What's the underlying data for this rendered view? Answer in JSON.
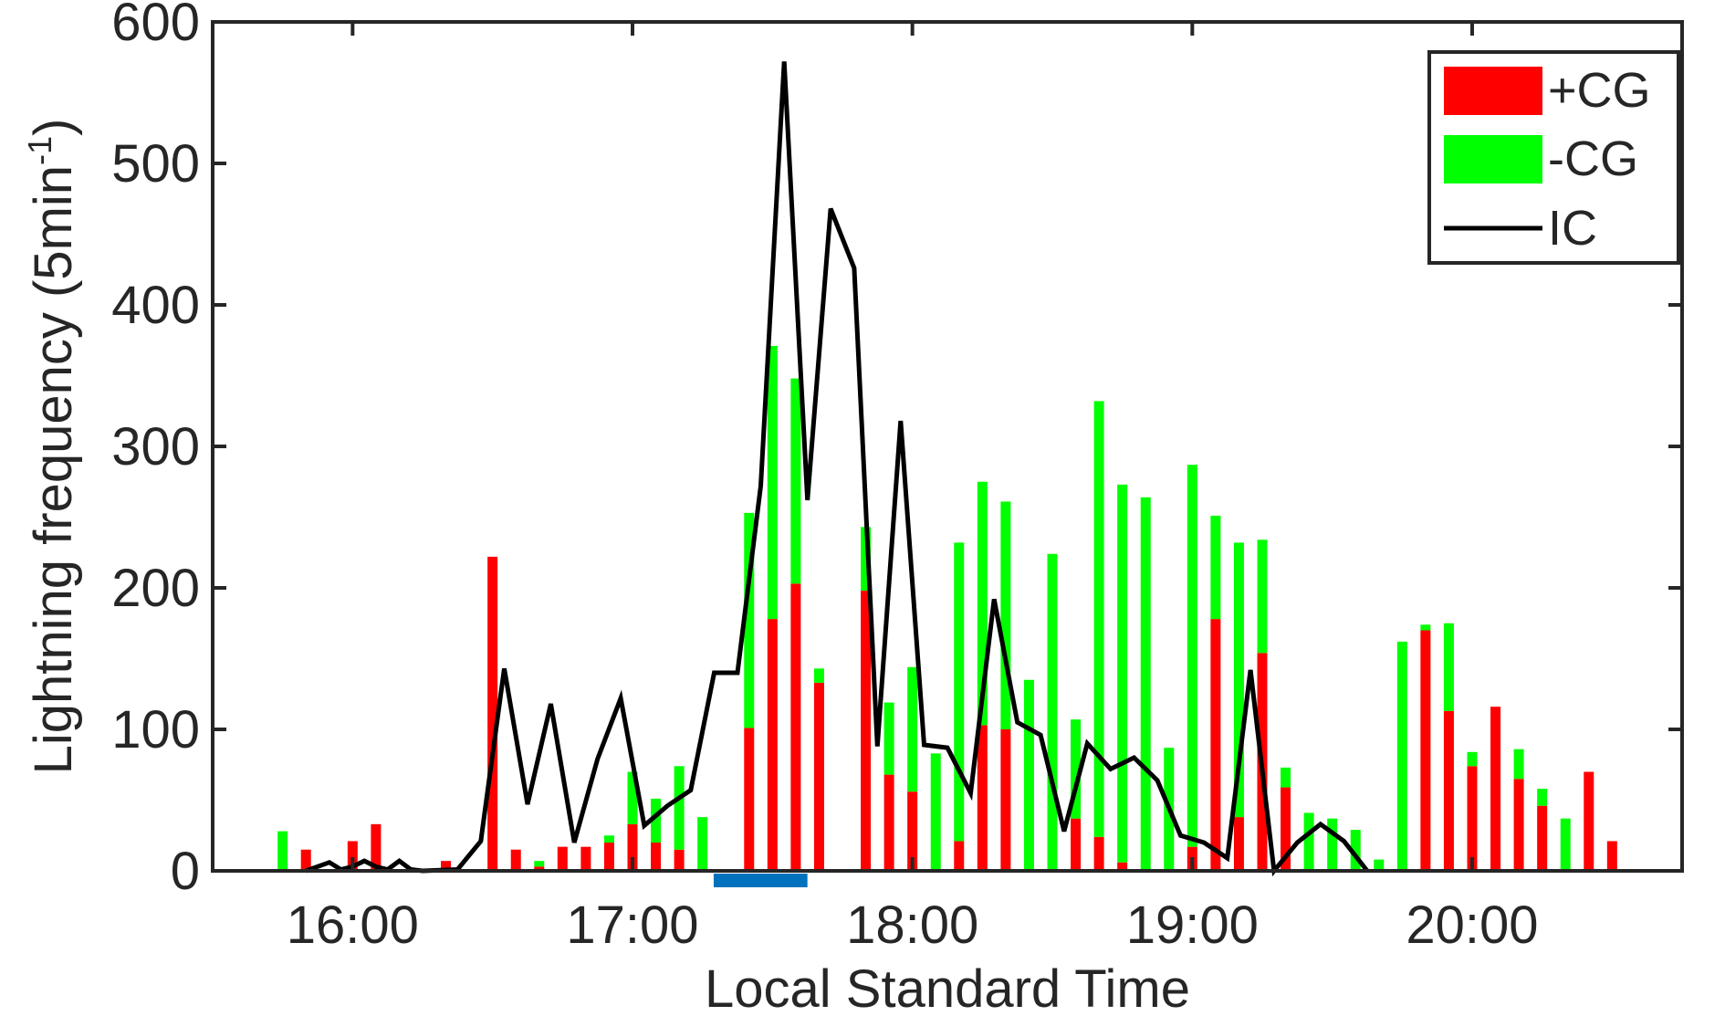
{
  "chart_data": {
    "type": "bar",
    "xlabel": "Local Standard Time",
    "ylabel": "Lightning frequency (5min",
    "ylabel_sup": "-1",
    "ylabel_close": ")",
    "ylim": [
      0,
      600
    ],
    "yticks": [
      0,
      100,
      200,
      300,
      400,
      500,
      600
    ],
    "xticks": [
      {
        "hour": 16,
        "label": "16:00"
      },
      {
        "hour": 17,
        "label": "17:00"
      },
      {
        "hour": 18,
        "label": "18:00"
      },
      {
        "hour": 19,
        "label": "19:00"
      },
      {
        "hour": 20,
        "label": "20:00"
      }
    ],
    "xlim_hours": [
      15.5,
      20.75
    ],
    "bar_start_hour": 15.75,
    "bar_step_minutes": 5,
    "legend": {
      "position": "top-right",
      "entries": [
        {
          "label": "+CG",
          "color": "#ff0000",
          "kind": "bar"
        },
        {
          "label": "-CG",
          "color": "#00ff00",
          "kind": "bar"
        },
        {
          "label": "IC",
          "color": "#000000",
          "kind": "line"
        }
      ]
    },
    "marker_interval": {
      "start_hour": 17.29,
      "end_hour": 17.625,
      "color": "#0072bd"
    },
    "series": [
      {
        "name": "+CG",
        "color": "#ff0000",
        "values": [
          0,
          15,
          0,
          21,
          33,
          0,
          0,
          7,
          0,
          222,
          15,
          3,
          17,
          17,
          20,
          33,
          20,
          15,
          0,
          0,
          101,
          178,
          203,
          133,
          0,
          198,
          68,
          56,
          0,
          21,
          103,
          100,
          0,
          0,
          37,
          24,
          6,
          0,
          0,
          17,
          178,
          38,
          154,
          59,
          0,
          0,
          0,
          0,
          0,
          170,
          113,
          74,
          116,
          65,
          46,
          0,
          70,
          21
        ]
      },
      {
        "name": "-CG",
        "color": "#00ff00",
        "values": [
          28,
          0,
          0,
          0,
          0,
          0,
          0,
          0,
          0,
          0,
          0,
          4,
          0,
          0,
          5,
          37,
          31,
          59,
          38,
          0,
          152,
          193,
          145,
          10,
          0,
          45,
          51,
          88,
          83,
          211,
          172,
          161,
          135,
          224,
          70,
          308,
          267,
          264,
          87,
          270,
          73,
          194,
          80,
          14,
          41,
          37,
          29,
          8,
          162,
          4,
          62,
          10,
          0,
          21,
          12,
          37,
          0,
          0
        ]
      }
    ],
    "ic_series": {
      "name": "IC",
      "color": "#000000",
      "points": [
        [
          15.833,
          0
        ],
        [
          15.917,
          6
        ],
        [
          15.958,
          1
        ],
        [
          16.0,
          3
        ],
        [
          16.042,
          7
        ],
        [
          16.083,
          3
        ],
        [
          16.125,
          1
        ],
        [
          16.167,
          7
        ],
        [
          16.208,
          1
        ],
        [
          16.25,
          0
        ],
        [
          16.375,
          1
        ],
        [
          16.458,
          21
        ],
        [
          16.542,
          143
        ],
        [
          16.625,
          47
        ],
        [
          16.708,
          118
        ],
        [
          16.792,
          20
        ],
        [
          16.875,
          79
        ],
        [
          16.958,
          122
        ],
        [
          17.042,
          32
        ],
        [
          17.125,
          46
        ],
        [
          17.208,
          57
        ],
        [
          17.292,
          140
        ],
        [
          17.375,
          140
        ],
        [
          17.458,
          272
        ],
        [
          17.542,
          572
        ],
        [
          17.625,
          262
        ],
        [
          17.708,
          468
        ],
        [
          17.792,
          426
        ],
        [
          17.875,
          88
        ],
        [
          17.958,
          318
        ],
        [
          18.042,
          89
        ],
        [
          18.125,
          87
        ],
        [
          18.208,
          55
        ],
        [
          18.292,
          192
        ],
        [
          18.375,
          105
        ],
        [
          18.458,
          96
        ],
        [
          18.542,
          28
        ],
        [
          18.625,
          90
        ],
        [
          18.708,
          72
        ],
        [
          18.792,
          80
        ],
        [
          18.875,
          64
        ],
        [
          18.958,
          25
        ],
        [
          19.042,
          20
        ],
        [
          19.125,
          9
        ],
        [
          19.208,
          142
        ],
        [
          19.292,
          0
        ],
        [
          19.375,
          20
        ],
        [
          19.458,
          33
        ],
        [
          19.542,
          21
        ],
        [
          19.625,
          0
        ]
      ]
    }
  }
}
